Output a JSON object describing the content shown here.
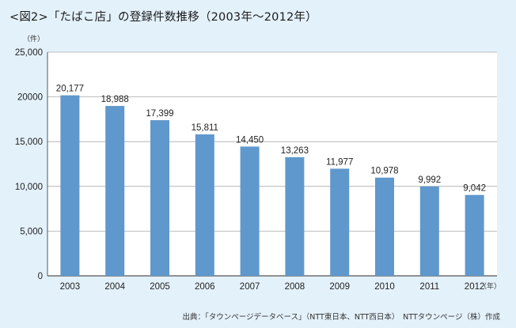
{
  "title": "<図2>「たばこ店」の登録件数推移（2003年〜2012年）",
  "source": "出典：「タウンページデータベース」（NTT東日本、NTT西日本）　NTTタウンページ（株）作成",
  "chart_data": {
    "type": "bar",
    "categories": [
      "2003",
      "2004",
      "2005",
      "2006",
      "2007",
      "2008",
      "2009",
      "2010",
      "2011",
      "2012"
    ],
    "values": [
      20177,
      18988,
      17399,
      15811,
      14450,
      13263,
      11977,
      10978,
      9992,
      9042
    ],
    "value_labels": [
      "20,177",
      "18,988",
      "17,399",
      "15,811",
      "14,450",
      "13,263",
      "11,977",
      "10,978",
      "9,992",
      "9,042"
    ],
    "yticks": [
      0,
      5000,
      10000,
      15000,
      20000,
      25000
    ],
    "ytick_labels": [
      "0",
      "5,000",
      "10,000",
      "15,000",
      "20000",
      "25,000"
    ],
    "ylim": [
      0,
      25000
    ],
    "ylabel": "（件）",
    "xlabel": "（年）",
    "grid": true,
    "bar_color": "#5f98cc",
    "grid_color": "#a9a9a9"
  }
}
